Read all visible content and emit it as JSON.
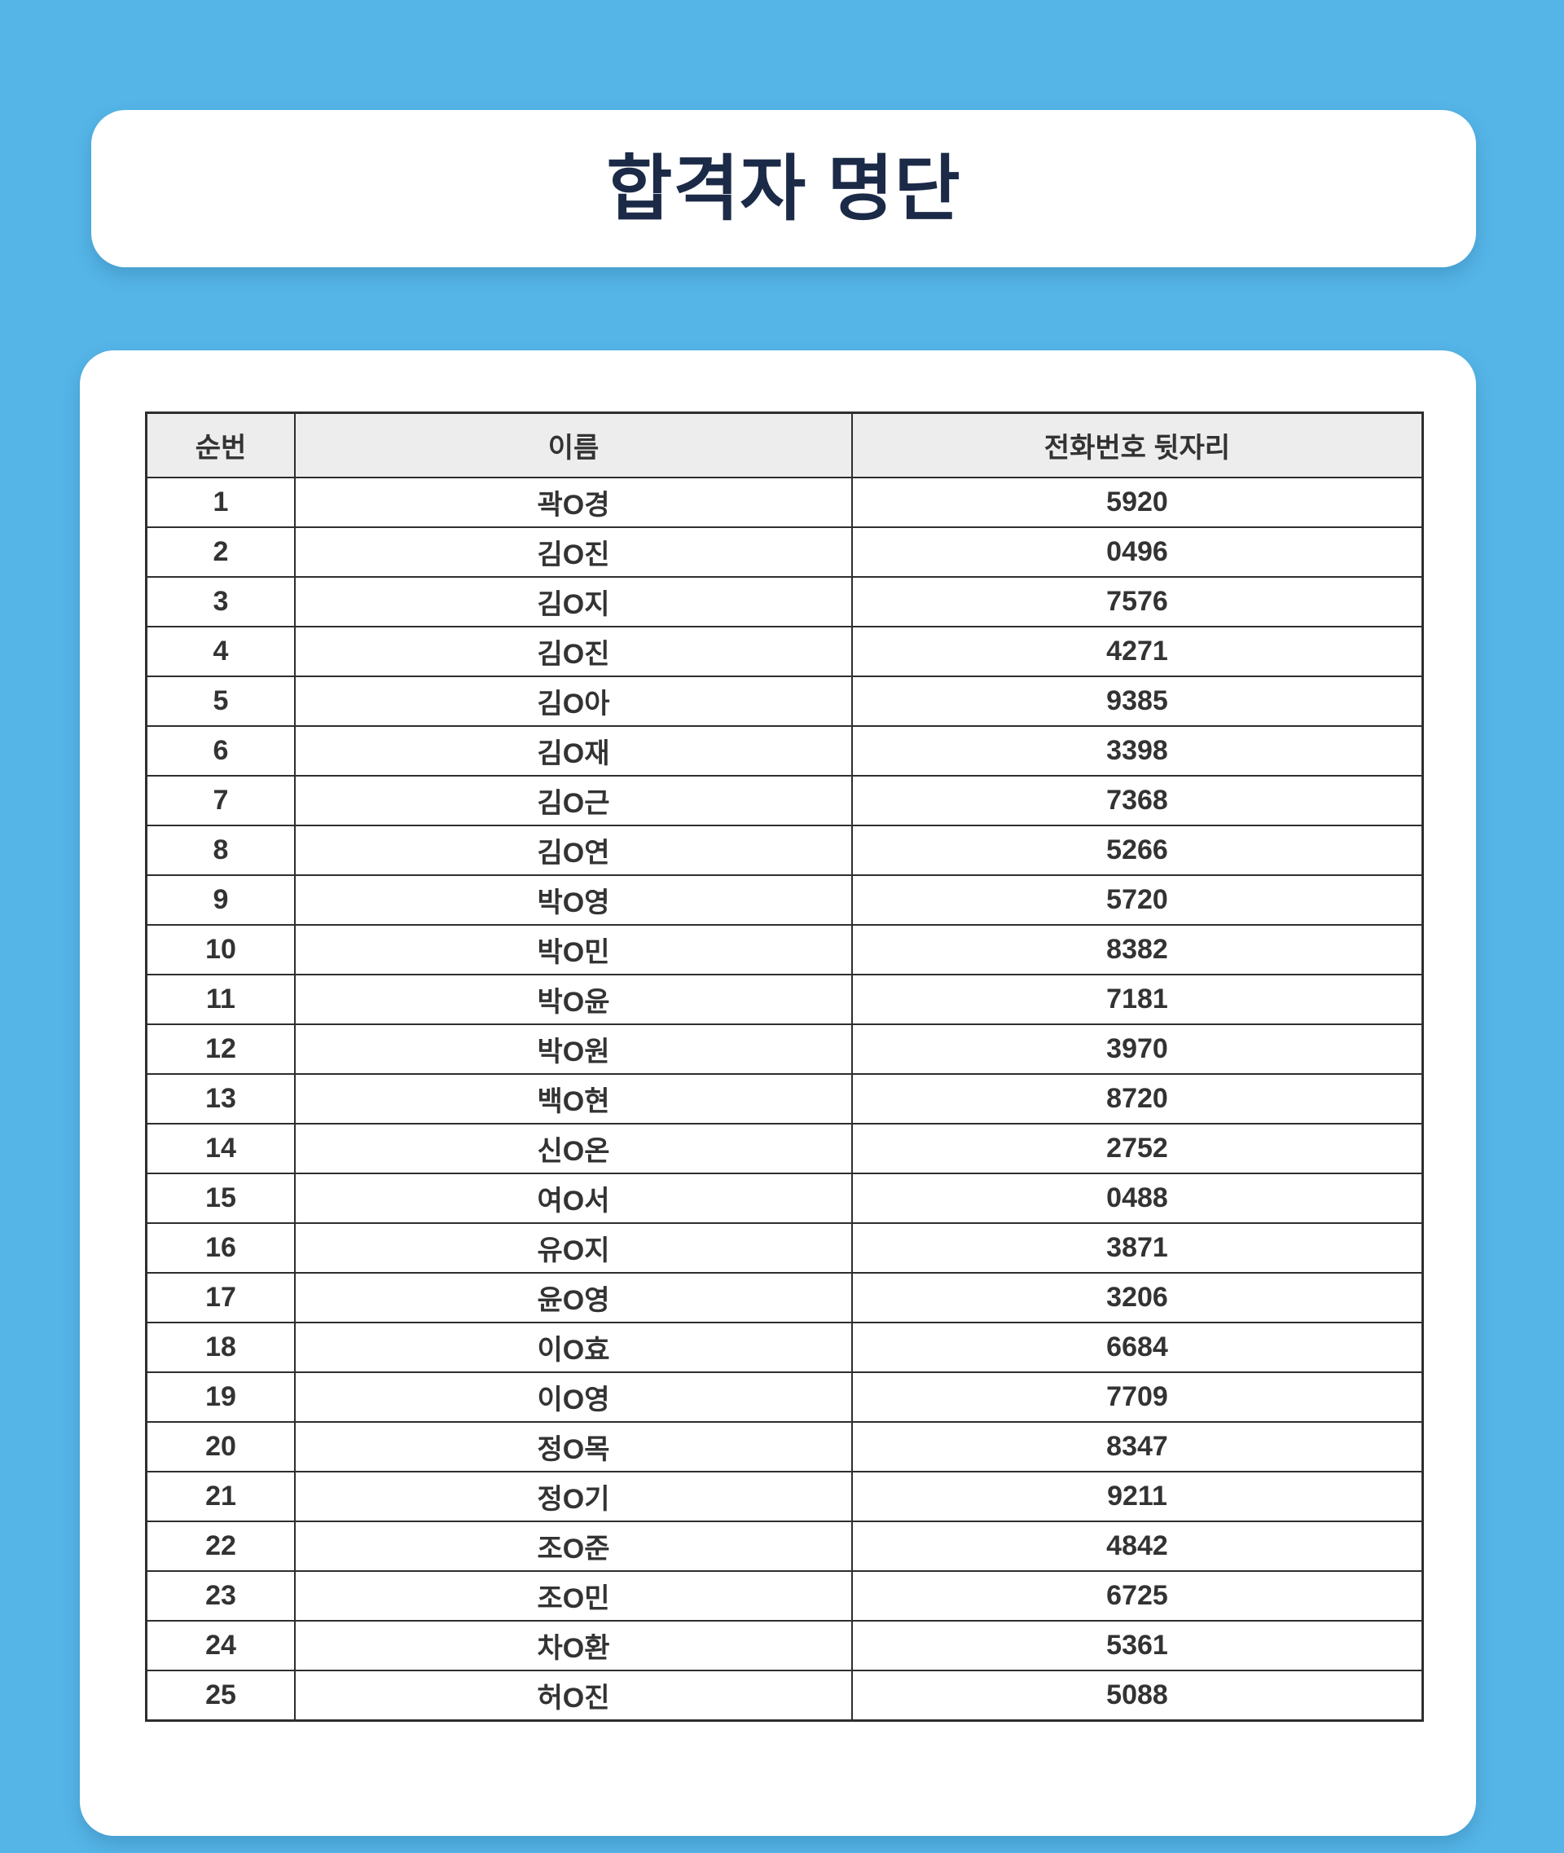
{
  "page": {
    "title": "합격자 명단"
  },
  "table": {
    "headers": [
      "순번",
      "이름",
      "전화번호 뒷자리"
    ],
    "rows": [
      {
        "no": "1",
        "name": "곽O경",
        "phone": "5920"
      },
      {
        "no": "2",
        "name": "김O진",
        "phone": "0496"
      },
      {
        "no": "3",
        "name": "김O지",
        "phone": "7576"
      },
      {
        "no": "4",
        "name": "김O진",
        "phone": "4271"
      },
      {
        "no": "5",
        "name": "김O아",
        "phone": "9385"
      },
      {
        "no": "6",
        "name": "김O재",
        "phone": "3398"
      },
      {
        "no": "7",
        "name": "김O근",
        "phone": "7368"
      },
      {
        "no": "8",
        "name": "김O연",
        "phone": "5266"
      },
      {
        "no": "9",
        "name": "박O영",
        "phone": "5720"
      },
      {
        "no": "10",
        "name": "박O민",
        "phone": "8382"
      },
      {
        "no": "11",
        "name": "박O윤",
        "phone": "7181"
      },
      {
        "no": "12",
        "name": "박O원",
        "phone": "3970"
      },
      {
        "no": "13",
        "name": "백O현",
        "phone": "8720"
      },
      {
        "no": "14",
        "name": "신O온",
        "phone": "2752"
      },
      {
        "no": "15",
        "name": "여O서",
        "phone": "0488"
      },
      {
        "no": "16",
        "name": "유O지",
        "phone": "3871"
      },
      {
        "no": "17",
        "name": "윤O영",
        "phone": "3206"
      },
      {
        "no": "18",
        "name": "이O효",
        "phone": "6684"
      },
      {
        "no": "19",
        "name": "이O영",
        "phone": "7709"
      },
      {
        "no": "20",
        "name": "정O목",
        "phone": "8347"
      },
      {
        "no": "21",
        "name": "정O기",
        "phone": "9211"
      },
      {
        "no": "22",
        "name": "조O준",
        "phone": "4842"
      },
      {
        "no": "23",
        "name": "조O민",
        "phone": "6725"
      },
      {
        "no": "24",
        "name": "차O환",
        "phone": "5361"
      },
      {
        "no": "25",
        "name": "허O진",
        "phone": "5088"
      }
    ]
  },
  "colors": {
    "background_blue": "#55B5E7",
    "card_white": "#FFFFFF",
    "header_gray": "#EDEDED",
    "border_dark": "#2E2E2E",
    "title_navy": "#1B2A47",
    "text_dark": "#333333"
  }
}
